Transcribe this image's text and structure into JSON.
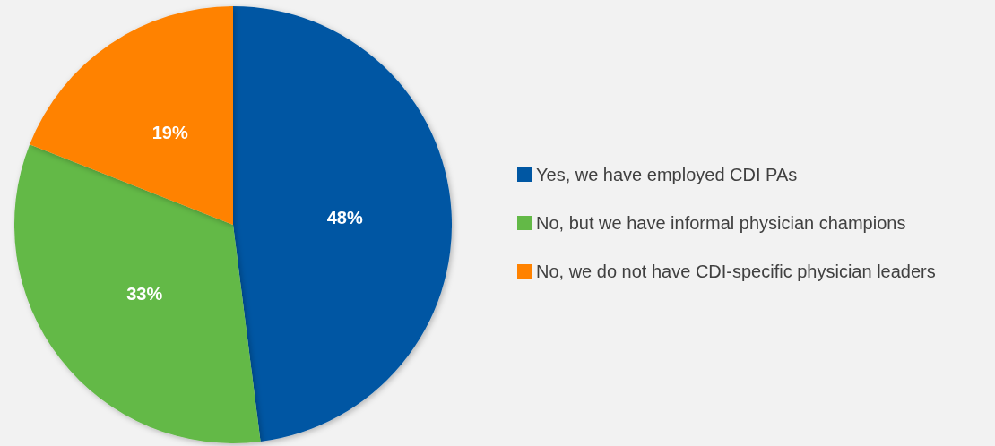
{
  "chart_data": {
    "type": "pie",
    "categories": [
      "Yes, we have employed CDI PAs",
      "No, but we have informal physician champions",
      "No, we do not have CDI-specific physician leaders"
    ],
    "values": [
      48,
      33,
      19
    ],
    "colors": [
      "#0057a3",
      "#63b947",
      "#ff8200"
    ],
    "value_labels": [
      "48%",
      "33%",
      "19%"
    ],
    "legend": "right"
  }
}
